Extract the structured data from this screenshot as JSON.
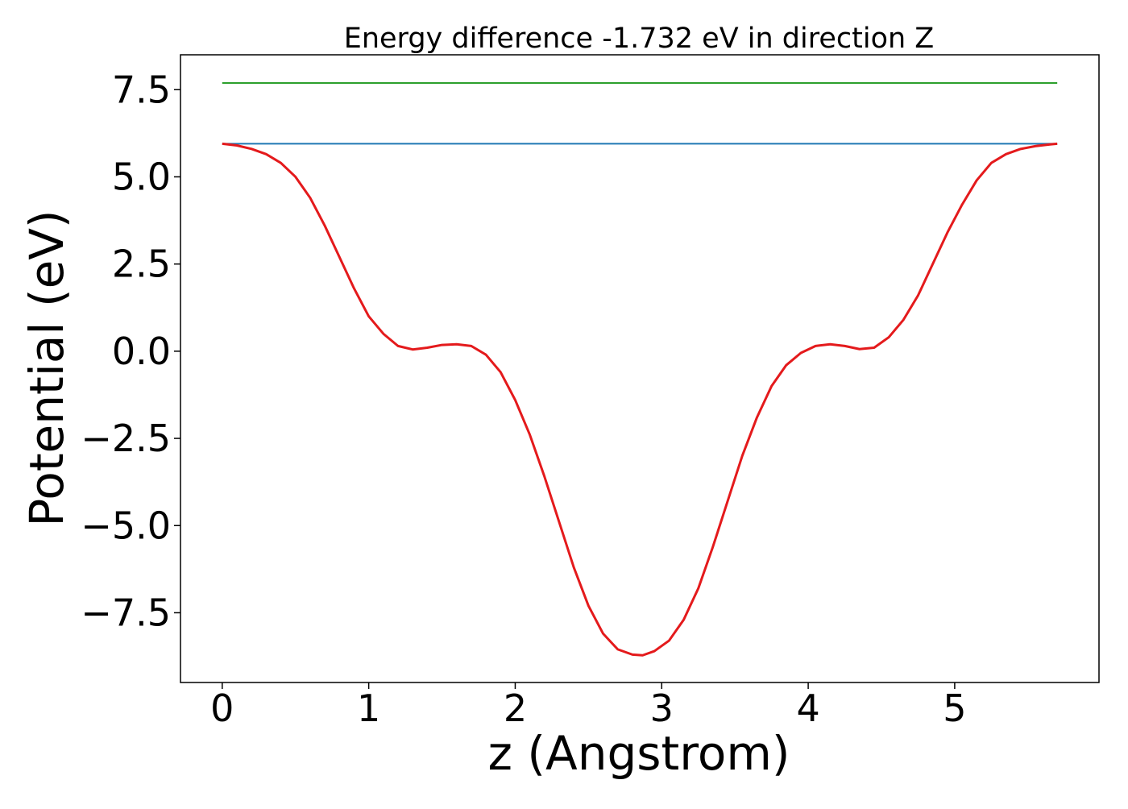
{
  "chart_data": {
    "type": "line",
    "title": "Energy difference -1.732 eV in direction Z",
    "xlabel": "z (Angstrom)",
    "ylabel": "Potential (eV)",
    "xlim": [
      -0.285,
      5.985
    ],
    "ylim": [
      -9.5,
      8.5
    ],
    "xticks": [
      0,
      1,
      2,
      3,
      4,
      5
    ],
    "xtick_labels": [
      "0",
      "1",
      "2",
      "3",
      "4",
      "5"
    ],
    "yticks": [
      7.5,
      5.0,
      2.5,
      0.0,
      -2.5,
      -5.0,
      -7.5
    ],
    "ytick_labels": [
      "7.5",
      "5.0",
      "2.5",
      "0.0",
      "−2.5",
      "−5.0",
      "−7.5"
    ],
    "grid": false,
    "series": [
      {
        "color": "#2ca02c",
        "x": [
          0,
          5.7
        ],
        "y": [
          7.69,
          7.69
        ]
      },
      {
        "color": "#1f77b4",
        "x": [
          0,
          5.7
        ],
        "y": [
          5.95,
          5.95
        ]
      },
      {
        "color": "#e41a1c",
        "x": [
          0,
          0.1,
          0.2,
          0.3,
          0.4,
          0.5,
          0.6,
          0.7,
          0.8,
          0.9,
          1.0,
          1.1,
          1.2,
          1.3,
          1.4,
          1.5,
          1.6,
          1.7,
          1.8,
          1.9,
          2.0,
          2.1,
          2.2,
          2.3,
          2.4,
          2.5,
          2.6,
          2.7,
          2.8,
          2.87,
          2.95,
          3.05,
          3.15,
          3.25,
          3.35,
          3.45,
          3.55,
          3.65,
          3.75,
          3.85,
          3.95,
          4.05,
          4.15,
          4.25,
          4.35,
          4.45,
          4.55,
          4.65,
          4.75,
          4.85,
          4.95,
          5.05,
          5.15,
          5.25,
          5.35,
          5.45,
          5.55,
          5.65,
          5.7
        ],
        "y": [
          5.95,
          5.9,
          5.8,
          5.65,
          5.4,
          5.0,
          4.4,
          3.6,
          2.7,
          1.8,
          1.0,
          0.5,
          0.15,
          0.05,
          0.1,
          0.18,
          0.2,
          0.15,
          -0.1,
          -0.6,
          -1.4,
          -2.4,
          -3.6,
          -4.9,
          -6.2,
          -7.3,
          -8.1,
          -8.55,
          -8.7,
          -8.72,
          -8.6,
          -8.3,
          -7.7,
          -6.8,
          -5.6,
          -4.3,
          -3.0,
          -1.9,
          -1.0,
          -0.4,
          -0.05,
          0.15,
          0.2,
          0.15,
          0.06,
          0.1,
          0.4,
          0.9,
          1.6,
          2.5,
          3.4,
          4.2,
          4.9,
          5.4,
          5.65,
          5.8,
          5.88,
          5.93,
          5.95
        ]
      }
    ]
  }
}
